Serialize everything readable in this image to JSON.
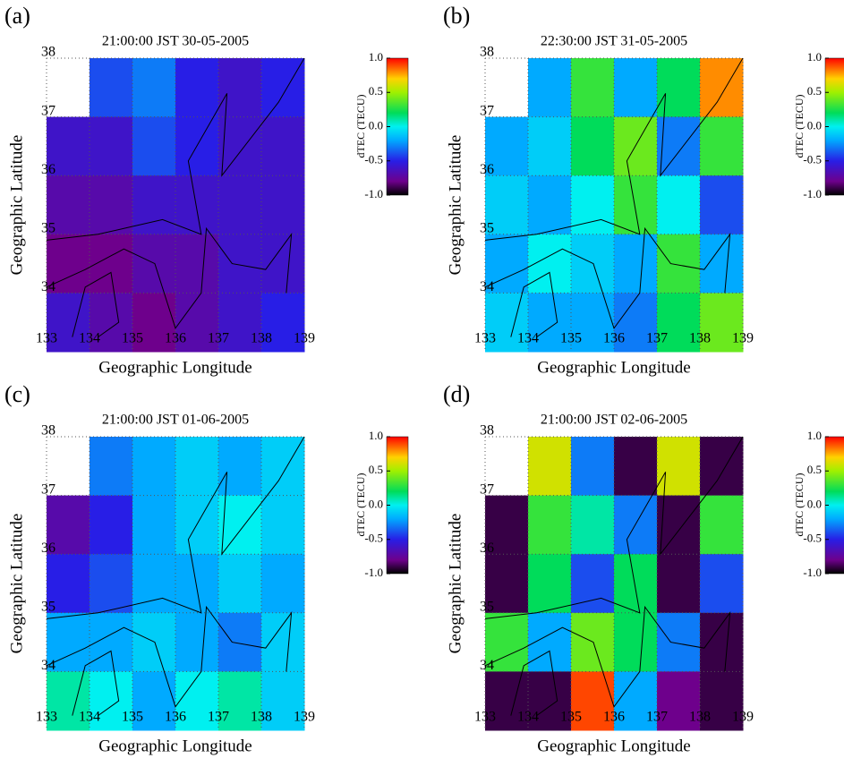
{
  "chart_data": [
    {
      "type": "heatmap",
      "panel": "(a)",
      "title": "21:00:00 JST  30-05-2005",
      "xlabel": "Geographic Longitude",
      "ylabel": "Geographic Latitude",
      "xlim": [
        133,
        139
      ],
      "ylim": [
        33,
        38
      ],
      "xticks": [
        133,
        134,
        135,
        136,
        137,
        138,
        139
      ],
      "yticks": [
        34,
        35,
        36,
        37,
        38
      ],
      "x": [
        133.5,
        134.5,
        135.5,
        136.5,
        137.5,
        138.5
      ],
      "y": [
        37.5,
        36.5,
        35.5,
        34.5,
        33.5
      ],
      "z": [
        [
          null,
          -0.4,
          -0.3,
          -0.5,
          -0.6,
          -0.5
        ],
        [
          -0.6,
          -0.6,
          -0.4,
          -0.5,
          -0.6,
          -0.6
        ],
        [
          -0.7,
          -0.7,
          -0.6,
          -0.6,
          -0.6,
          -0.6
        ],
        [
          -0.8,
          -0.8,
          -0.7,
          -0.7,
          -0.6,
          -0.6
        ],
        [
          -0.6,
          -0.7,
          -0.8,
          -0.7,
          -0.6,
          -0.5
        ]
      ],
      "colorbar_label": "dTEC (TECU)",
      "clim": [
        -1,
        1
      ],
      "cticks": [
        {
          "value": 1,
          "label": "1.0"
        },
        {
          "value": 0.5,
          "label": "0.5"
        },
        {
          "value": 0,
          "label": "0.0"
        },
        {
          "value": -0.5,
          "label": "-0.5"
        },
        {
          "value": -1,
          "label": "-1.0"
        }
      ]
    },
    {
      "type": "heatmap",
      "panel": "(b)",
      "title": "22:30:00 JST  31-05-2005",
      "xlabel": "Geographic Longitude",
      "ylabel": "Geographic Latitude",
      "xlim": [
        133,
        139
      ],
      "ylim": [
        33,
        38
      ],
      "xticks": [
        133,
        134,
        135,
        136,
        137,
        138,
        139
      ],
      "yticks": [
        34,
        35,
        36,
        37,
        38
      ],
      "x": [
        133.5,
        134.5,
        135.5,
        136.5,
        137.5,
        138.5
      ],
      "y": [
        37.5,
        36.5,
        35.5,
        34.5,
        33.5
      ],
      "z": [
        [
          null,
          -0.2,
          0.3,
          -0.2,
          0.2,
          0.8
        ],
        [
          -0.2,
          -0.1,
          0.2,
          0.4,
          -0.3,
          0.3
        ],
        [
          -0.1,
          -0.2,
          0.0,
          0.3,
          0.0,
          -0.4
        ],
        [
          -0.2,
          0.0,
          -0.1,
          -0.2,
          0.3,
          -0.2
        ],
        [
          -0.1,
          -0.2,
          -0.2,
          -0.3,
          0.2,
          0.4
        ]
      ],
      "colorbar_label": "dTEC (TECU)",
      "clim": [
        -1,
        1
      ],
      "cticks": [
        {
          "value": 1,
          "label": "1.0"
        },
        {
          "value": 0.5,
          "label": "0.5"
        },
        {
          "value": 0,
          "label": "0.0"
        },
        {
          "value": -0.5,
          "label": "-0.5"
        },
        {
          "value": -1,
          "label": "-1.0"
        }
      ]
    },
    {
      "type": "heatmap",
      "panel": "(c)",
      "title": "21:00:00 JST  01-06-2005",
      "xlabel": "Geographic Longitude",
      "ylabel": "Geographic Latitude",
      "xlim": [
        133,
        139
      ],
      "ylim": [
        33,
        38
      ],
      "xticks": [
        133,
        134,
        135,
        136,
        137,
        138,
        139
      ],
      "yticks": [
        34,
        35,
        36,
        37,
        38
      ],
      "x": [
        133.5,
        134.5,
        135.5,
        136.5,
        137.5,
        138.5
      ],
      "y": [
        37.5,
        36.5,
        35.5,
        34.5,
        33.5
      ],
      "z": [
        [
          null,
          -0.3,
          -0.2,
          -0.1,
          -0.2,
          -0.1
        ],
        [
          -0.7,
          -0.5,
          -0.2,
          -0.1,
          0.0,
          -0.1
        ],
        [
          -0.5,
          -0.4,
          -0.2,
          -0.2,
          -0.1,
          -0.2
        ],
        [
          -0.2,
          -0.2,
          -0.1,
          -0.2,
          -0.3,
          -0.1
        ],
        [
          0.1,
          0.0,
          -0.2,
          0.0,
          0.1,
          -0.1
        ]
      ],
      "colorbar_label": "dTEC (TECU)",
      "clim": [
        -1,
        1
      ],
      "cticks": [
        {
          "value": 1,
          "label": "1.0"
        },
        {
          "value": 0.5,
          "label": "0.5"
        },
        {
          "value": 0,
          "label": "0.0"
        },
        {
          "value": -0.5,
          "label": "-0.5"
        },
        {
          "value": -1,
          "label": "-1.0"
        }
      ]
    },
    {
      "type": "heatmap",
      "panel": "(d)",
      "title": "21:00:00 JST  02-06-2005",
      "xlabel": "Geographic Longitude",
      "ylabel": "Geographic Latitude",
      "xlim": [
        133,
        139
      ],
      "ylim": [
        33,
        38
      ],
      "xticks": [
        133,
        134,
        135,
        136,
        137,
        138,
        139
      ],
      "yticks": [
        34,
        35,
        36,
        37,
        38
      ],
      "x": [
        133.5,
        134.5,
        135.5,
        136.5,
        137.5,
        138.5
      ],
      "y": [
        37.5,
        36.5,
        35.5,
        34.5,
        33.5
      ],
      "z": [
        [
          null,
          0.6,
          -0.3,
          -0.9,
          0.6,
          -0.9
        ],
        [
          -0.9,
          0.3,
          0.1,
          -0.3,
          -0.9,
          0.3
        ],
        [
          -0.9,
          0.2,
          -0.4,
          0.2,
          -0.9,
          -0.4
        ],
        [
          0.3,
          -0.2,
          0.4,
          0.2,
          -0.3,
          -0.9
        ],
        [
          -0.9,
          -0.9,
          0.9,
          -0.2,
          -0.8,
          -0.9
        ]
      ],
      "colorbar_label": "dTEC (TECU)",
      "clim": [
        -1,
        1
      ],
      "cticks": [
        {
          "value": 1,
          "label": "1.0"
        },
        {
          "value": 0.5,
          "label": "0.5"
        },
        {
          "value": 0,
          "label": "0.0"
        },
        {
          "value": -0.5,
          "label": "-0.5"
        },
        {
          "value": -1,
          "label": "-1.0"
        }
      ]
    }
  ]
}
